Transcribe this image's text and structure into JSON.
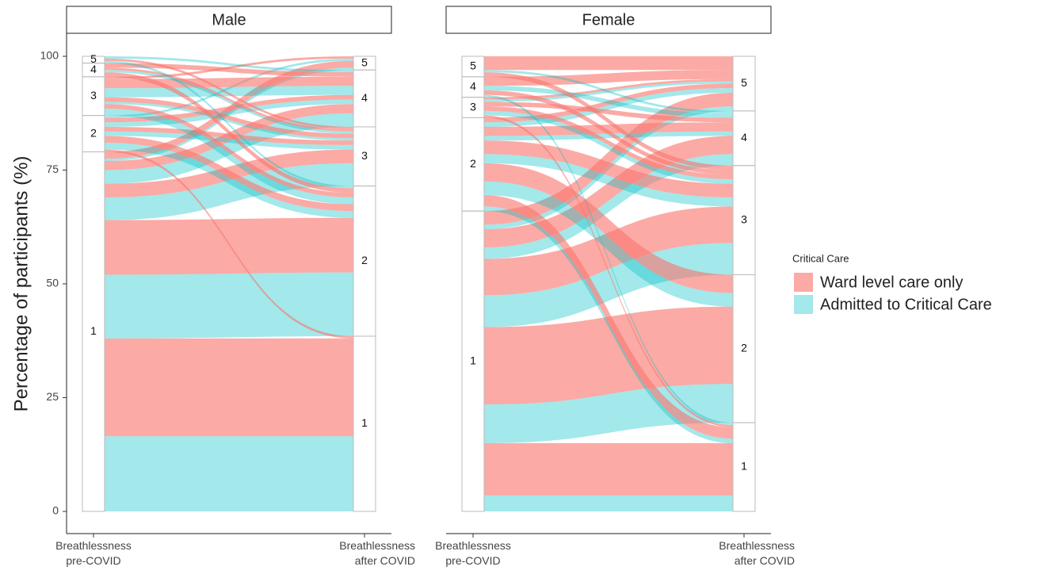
{
  "chart_data": [
    {
      "type": "alluvial",
      "title": "Male",
      "ylabel": "Percentage of participants (%)",
      "ylim": [
        0,
        100
      ],
      "yticks": [
        0,
        25,
        50,
        75,
        100
      ],
      "categories": [
        "Breathlessness\npre-COVID",
        "Breathlessness\nafter COVID"
      ],
      "strata": [
        "1",
        "2",
        "3",
        "4",
        "5"
      ],
      "legend_title": "Critical Care",
      "series": [
        {
          "name": "Ward level care only",
          "color": "#F8766D",
          "values": [
            [
              21.5,
              12,
              3,
              2,
              1.5
            ],
            [
              0.5,
              1.5,
              1,
              1,
              0
            ],
            [
              0,
              1,
              1,
              2,
              0.5
            ],
            [
              0,
              1,
              0.5,
              1,
              0
            ],
            [
              0,
              0,
              0.5,
              0,
              0
            ]
          ]
        },
        {
          "name": "Admitted to Critical Care",
          "color": "#00BFC4",
          "values": [
            [
              16.5,
              14,
              5,
              3,
              0.5
            ],
            [
              0,
              1.5,
              1,
              1,
              0.5
            ],
            [
              0,
              1.5,
              0.5,
              2,
              0
            ],
            [
              0,
              0,
              0.5,
              0,
              0
            ],
            [
              0,
              0.5,
              0,
              0.5,
              0
            ]
          ]
        }
      ]
    },
    {
      "type": "alluvial",
      "title": "Female",
      "ylim": [
        0,
        100
      ],
      "categories": [
        "Breathlessness\npre-COVID",
        "Breathlessness\nafter COVID"
      ],
      "strata": [
        "1",
        "2",
        "3",
        "4",
        "5"
      ],
      "series": [
        {
          "values": [
            [
              11.5,
              17,
              8,
              4,
              3
            ],
            [
              2.5,
              4,
              3,
              2,
              1
            ],
            [
              0.5,
              0,
              1,
              1,
              0.5
            ],
            [
              0,
              0,
              1,
              0,
              2
            ],
            [
              0,
              0,
              1,
              0,
              3
            ]
          ]
        },
        {
          "values": [
            [
              3.5,
              8.5,
              7,
              2.5,
              1
            ],
            [
              1,
              3,
              2,
              1,
              1
            ],
            [
              0,
              0,
              1,
              0,
              0.5
            ],
            [
              0.5,
              0,
              0,
              1,
              0
            ],
            [
              0,
              0,
              0,
              0.5,
              0
            ]
          ]
        }
      ]
    }
  ]
}
